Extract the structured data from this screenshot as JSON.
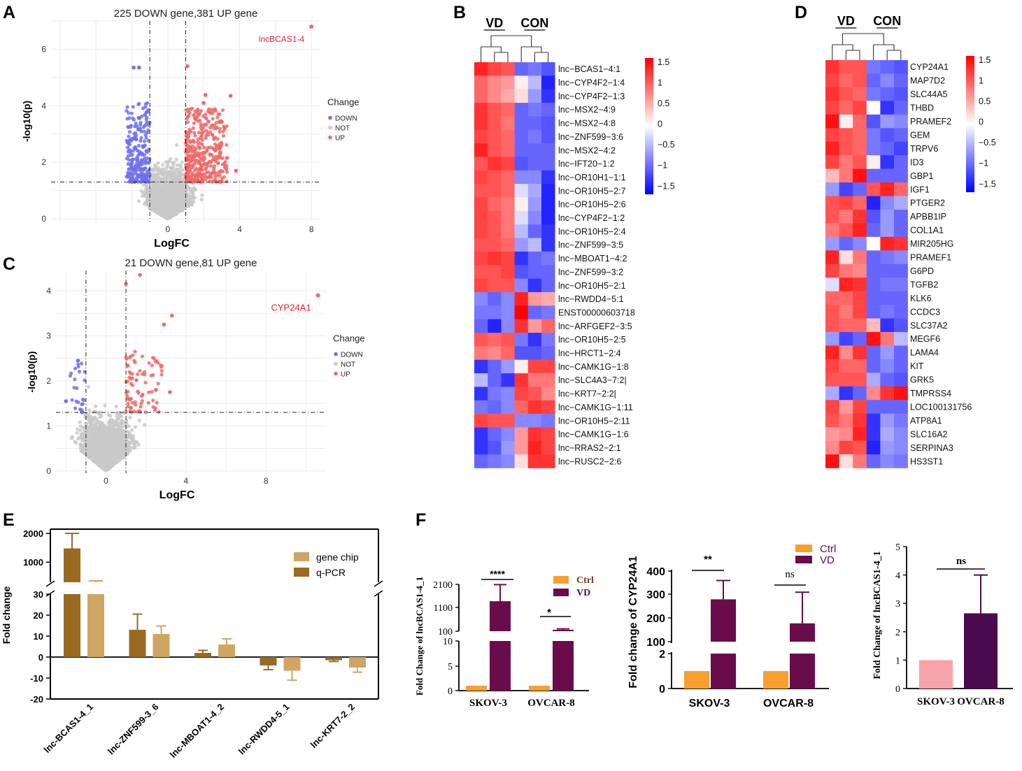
{
  "panel_labels": {
    "a": "A",
    "b": "B",
    "c": "C",
    "d": "D",
    "e": "E",
    "f": "F"
  },
  "chart_data": [
    {
      "id": "A",
      "type": "scatter",
      "title": "225 DOWN gene,381 UP gene",
      "xlabel": "LogFC",
      "ylabel": "-log10(p)",
      "xticks": [
        "0",
        "4",
        "8"
      ],
      "yticks": [
        "0",
        "2",
        "4",
        "6"
      ],
      "xlim": [
        -6.5,
        8.5
      ],
      "ylim": [
        -0.1,
        7.0
      ],
      "thresholds": {
        "logfc": [
          -1,
          1
        ],
        "p": 1.3
      },
      "annotation": {
        "label": "lncBCAS1-4",
        "x": 8.0,
        "y": 6.8
      },
      "legend_title": "Change",
      "legend": [
        "DOWN",
        "NOT",
        "UP"
      ],
      "colors": {
        "DOWN": "#7070ee",
        "NOT": "#c9c9c9",
        "UP": "#ee6a6a"
      },
      "counts": {
        "down": 225,
        "up": 381
      },
      "highlight_points": [
        {
          "x": -1.9,
          "y": 5.35,
          "c": "DOWN"
        },
        {
          "x": -1.6,
          "y": 5.35,
          "c": "DOWN"
        },
        {
          "x": 1.1,
          "y": 5.4,
          "c": "UP"
        },
        {
          "x": 3.5,
          "y": 4.35,
          "c": "UP"
        },
        {
          "x": 2.1,
          "y": 4.38,
          "c": "UP"
        },
        {
          "x": 3.3,
          "y": 2.15,
          "c": "UP"
        },
        {
          "x": 3.8,
          "y": 1.7,
          "c": "UP"
        },
        {
          "x": 2.0,
          "y": 4.1,
          "c": "UP"
        }
      ]
    },
    {
      "id": "C",
      "type": "scatter",
      "title": "21 DOWN gene,81 UP gene",
      "xlabel": "LogFC",
      "ylabel": "-log10(p)",
      "xticks": [
        "0",
        "4",
        "8"
      ],
      "yticks": [
        "0",
        "1",
        "2",
        "3",
        "4"
      ],
      "xlim": [
        -2.5,
        11.0
      ],
      "ylim": [
        -0.05,
        4.45
      ],
      "thresholds": {
        "logfc": [
          -1,
          1
        ],
        "p": 1.3
      },
      "annotation": {
        "label": "CYP24A1",
        "x": 10.6,
        "y": 3.9
      },
      "legend_title": "Change",
      "legend": [
        "DOWN",
        "NOT",
        "UP"
      ],
      "colors": {
        "DOWN": "#7070ee",
        "NOT": "#c9c9c9",
        "UP": "#ee6a6a"
      },
      "counts": {
        "down": 21,
        "up": 81
      },
      "highlight_points": [
        {
          "x": 1.7,
          "y": 4.35,
          "c": "UP"
        },
        {
          "x": 1.0,
          "y": 4.15,
          "c": "UP"
        },
        {
          "x": 3.3,
          "y": 3.45,
          "c": "UP"
        },
        {
          "x": 2.9,
          "y": 3.25,
          "c": "UP"
        },
        {
          "x": 3.2,
          "y": 1.75,
          "c": "UP"
        },
        {
          "x": 2.5,
          "y": 1.8,
          "c": "UP"
        },
        {
          "x": -2.0,
          "y": 1.55,
          "c": "DOWN"
        },
        {
          "x": -1.4,
          "y": 2.45,
          "c": "DOWN"
        }
      ]
    },
    {
      "id": "B",
      "type": "heatmap",
      "groups": [
        "VD",
        "CON"
      ],
      "scale": {
        "ticks": [
          "1.5",
          "1",
          "0.5",
          "0",
          "−0.5",
          "−1",
          "−1.5"
        ],
        "range": [
          -1.5,
          1.5
        ]
      },
      "rows": [
        "lnc−BCAS1−4:1",
        "lnc−CYP4F2−1:4",
        "lnc−CYP4F2−1:3",
        "lnc−MSX2−4:9",
        "lnc−MSX2−4:8",
        "lnc−ZNF599−3:6",
        "lnc−MSX2−4:2",
        "lnc−IFT20−1:2",
        "lnc−OR10H1−1:1",
        "lnc−OR10H5−2:7",
        "lnc−OR10H5−2:6",
        "lnc−CYP4F2−1:2",
        "lnc−OR10H5−2:4",
        "lnc−ZNF599−3:5",
        "lnc−MBOAT1−4:2",
        "lnc−ZNF599−3:2",
        "lnc−OR10H5−2:1",
        "lnc−RWDD4−5:1",
        "ENST00000603718",
        "lnc−ARFGEF2−3:5",
        "lnc−OR10H5−2:5",
        "lnc−HRCT1−2:4",
        "lnc−CAMK1G−1:8",
        "lnc−SLC4A3−7:2|",
        "lnc−KRT7−2:2|",
        "lnc−CAMK1G−1:11",
        "lnc−OR10H5−2:11",
        "lnc−CAMK1G−1:6",
        "lnc−RRAS2−2:1",
        "lnc−RUSC2−2:6"
      ],
      "values": [
        [
          1.3,
          1.1,
          1.0,
          -0.9,
          -0.8,
          -1.0
        ],
        [
          0.9,
          0.7,
          0.6,
          0.1,
          -0.4,
          -1.3
        ],
        [
          0.9,
          0.7,
          0.5,
          0.2,
          -0.6,
          -1.2
        ],
        [
          1.2,
          1.0,
          0.9,
          -0.9,
          -0.8,
          -0.9
        ],
        [
          1.2,
          1.0,
          0.8,
          -0.9,
          -0.9,
          -1.0
        ],
        [
          1.1,
          1.0,
          0.9,
          -0.9,
          -0.8,
          -1.0
        ],
        [
          1.3,
          1.0,
          0.9,
          -0.9,
          -0.9,
          -0.9
        ],
        [
          1.0,
          1.2,
          1.1,
          -1.0,
          -0.9,
          -0.9
        ],
        [
          1.1,
          1.0,
          0.9,
          -0.7,
          -0.7,
          -1.2
        ],
        [
          1.0,
          1.0,
          0.9,
          -0.2,
          -0.5,
          -1.3
        ],
        [
          1.1,
          0.9,
          0.8,
          0.1,
          -0.6,
          -1.3
        ],
        [
          1.1,
          1.0,
          0.8,
          -0.2,
          -0.7,
          -1.3
        ],
        [
          1.1,
          1.0,
          0.8,
          -0.4,
          -0.9,
          -1.2
        ],
        [
          1.0,
          1.0,
          0.9,
          -0.6,
          -0.4,
          -1.2
        ],
        [
          1.1,
          1.2,
          1.1,
          -1.2,
          -0.9,
          -0.8
        ],
        [
          1.0,
          1.0,
          1.1,
          -1.0,
          -0.9,
          -0.9
        ],
        [
          1.1,
          1.0,
          1.0,
          -0.7,
          -1.2,
          -0.9
        ],
        [
          -0.7,
          -0.9,
          -0.7,
          1.3,
          0.6,
          0.5
        ],
        [
          -0.8,
          -0.8,
          -0.7,
          1.5,
          -0.9,
          -0.8
        ],
        [
          -0.9,
          -1.3,
          -0.7,
          1.2,
          0.6,
          0.9
        ],
        [
          1.0,
          0.9,
          1.0,
          -0.8,
          -1.2,
          -0.8
        ],
        [
          0.8,
          0.7,
          0.9,
          -1.0,
          -1.0,
          -0.9
        ],
        [
          -1.2,
          -0.9,
          -0.6,
          0.1,
          1.1,
          1.1
        ],
        [
          -0.4,
          -0.9,
          -1.2,
          1.2,
          0.8,
          0.8
        ],
        [
          -1.2,
          -0.8,
          -0.7,
          1.1,
          1.0,
          0.7
        ],
        [
          -0.8,
          -0.9,
          -0.7,
          0.9,
          1.2,
          1.1
        ],
        [
          1.1,
          1.0,
          1.0,
          -0.7,
          -0.7,
          -0.8
        ],
        [
          -1.2,
          -0.9,
          -0.7,
          0.6,
          1.2,
          1.1
        ],
        [
          -1.2,
          -1.0,
          -0.6,
          0.6,
          1.3,
          1.1
        ],
        [
          -0.9,
          -0.8,
          -0.7,
          0.2,
          1.2,
          1.2
        ]
      ]
    },
    {
      "id": "D",
      "type": "heatmap",
      "groups": [
        "VD",
        "CON"
      ],
      "scale": {
        "ticks": [
          "1.5",
          "1",
          "0.5",
          "0",
          "−0.5",
          "−1",
          "−1.5"
        ],
        "range": [
          -1.5,
          1.5
        ]
      },
      "rows": [
        "CYP24A1",
        "MAP7D2",
        "SLC44A5",
        "THBD",
        "PRAMEF2",
        "GEM",
        "TRPV6",
        "ID3",
        "GBP1",
        "IGF1",
        "PTGER2",
        "APBB1IP",
        "COL1A1",
        "MIR205HG",
        "PRAMEF1",
        "G6PD",
        "TGFB2",
        "KLK6",
        "CCDC3",
        "SLC37A2",
        "MEGF6",
        "LAMA4",
        "KIT",
        "GRK5",
        "TMPRSS4",
        "LOC100131756",
        "ATP8A1",
        "SLC16A2",
        "SERPINA3",
        "HS3ST1"
      ],
      "values": [
        [
          1.2,
          1.0,
          1.0,
          -0.8,
          -0.9,
          -1.0
        ],
        [
          1.1,
          0.9,
          1.0,
          -0.9,
          -0.7,
          -0.9
        ],
        [
          1.2,
          1.0,
          0.9,
          -0.8,
          -0.9,
          -1.0
        ],
        [
          1.1,
          0.9,
          1.1,
          0.0,
          -1.2,
          -0.9
        ],
        [
          1.4,
          0.1,
          0.9,
          -1.0,
          -0.6,
          -0.7
        ],
        [
          1.1,
          1.0,
          0.9,
          -0.8,
          -1.0,
          -0.9
        ],
        [
          1.3,
          1.0,
          0.9,
          -0.8,
          -0.9,
          -1.1
        ],
        [
          1.1,
          0.8,
          1.0,
          0.1,
          -1.2,
          -0.9
        ],
        [
          0.4,
          0.8,
          1.4,
          -0.9,
          -0.9,
          -0.9
        ],
        [
          -0.6,
          -1.1,
          -0.9,
          1.0,
          1.3,
          0.9
        ],
        [
          1.0,
          1.1,
          0.9,
          -1.3,
          -0.7,
          -0.5
        ],
        [
          1.0,
          0.8,
          1.2,
          -1.0,
          -0.6,
          -0.9
        ],
        [
          0.8,
          1.0,
          1.3,
          -0.9,
          -0.6,
          -0.9
        ],
        [
          -0.6,
          -0.9,
          -0.7,
          0.0,
          1.3,
          1.2
        ],
        [
          1.3,
          0.2,
          0.8,
          -0.9,
          -0.8,
          -0.7
        ],
        [
          1.1,
          0.8,
          0.7,
          -0.9,
          -0.9,
          -0.9
        ],
        [
          -0.2,
          1.3,
          1.2,
          -0.9,
          -0.8,
          -0.8
        ],
        [
          0.9,
          0.9,
          1.1,
          -0.9,
          -0.9,
          -0.9
        ],
        [
          1.0,
          0.8,
          1.1,
          -0.9,
          -0.8,
          -0.9
        ],
        [
          1.0,
          0.9,
          0.9,
          0.4,
          -1.2,
          -1.0
        ],
        [
          -0.6,
          -1.1,
          -0.9,
          1.4,
          0.8,
          -0.4
        ],
        [
          1.3,
          0.7,
          1.2,
          -0.9,
          -0.6,
          -0.9
        ],
        [
          1.1,
          0.9,
          0.9,
          -0.9,
          -0.7,
          -0.9
        ],
        [
          1.0,
          1.0,
          1.0,
          -0.5,
          -0.9,
          -1.0
        ],
        [
          -0.5,
          -1.2,
          -0.9,
          0.7,
          1.2,
          1.4
        ],
        [
          1.1,
          0.6,
          1.1,
          -0.9,
          -0.9,
          -0.9
        ],
        [
          1.0,
          0.8,
          1.2,
          -1.2,
          -0.6,
          -0.8
        ],
        [
          0.6,
          0.7,
          1.3,
          -1.2,
          -0.5,
          -0.7
        ],
        [
          0.7,
          1.1,
          1.0,
          -1.3,
          -0.6,
          -0.7
        ],
        [
          1.4,
          0.2,
          0.8,
          -0.9,
          -0.7,
          -0.8
        ]
      ]
    },
    {
      "id": "E",
      "type": "bar",
      "ylabel": "Fold change",
      "categories": [
        "lnc-BCAS1-4_1",
        "lnc-ZNF599-3_6",
        "lnc-MBOAT1-4_2",
        "lnc-RWDD4-5_1",
        "lnc-KRT7-2_2"
      ],
      "series": [
        {
          "name": "q-PCR",
          "values": [
            1480,
            13,
            2,
            -4,
            -1.5
          ],
          "errors": [
            520,
            7.5,
            1.2,
            2.0,
            0.6
          ],
          "color": "#9b6a22"
        },
        {
          "name": "gene chip",
          "values": [
            310,
            11,
            6,
            -6.5,
            -5
          ],
          "errors": [
            45,
            3.8,
            2.7,
            4.5,
            2.2
          ],
          "color": "#d0a564"
        }
      ],
      "legend": [
        "gene chip",
        "q-PCR"
      ],
      "yticks_low": [
        "-20",
        "-10",
        "0",
        "10",
        "20",
        "30"
      ],
      "yticks_high": [
        "1000",
        "2000"
      ],
      "ybreak": [
        30,
        2150
      ]
    },
    {
      "id": "F1",
      "type": "bar",
      "ylabel": "Fold Change of lncBCAS1-4_1",
      "categories": [
        "SKOV-3",
        "OVCAR-8"
      ],
      "series": [
        {
          "name": "Ctrl",
          "values": [
            1,
            1
          ],
          "color": "#f5a02f"
        },
        {
          "name": "VD",
          "values": [
            1370,
            160
          ],
          "errors": [
            720,
            40
          ],
          "color": "#6a0c4b"
        }
      ],
      "legend": [
        "Ctrl",
        "VD"
      ],
      "yticks": [
        "0",
        "5",
        "10",
        "100",
        "1100",
        "2100"
      ],
      "significance": [
        "****",
        "*"
      ]
    },
    {
      "id": "F2",
      "type": "bar",
      "ylabel": "Fold change of CYP24A1",
      "categories": [
        "SKOV-3",
        "OVCAR-8"
      ],
      "series": [
        {
          "name": "Ctrl",
          "values": [
            1,
            1
          ],
          "color": "#f5a02f"
        },
        {
          "name": "VD",
          "values": [
            280,
            178
          ],
          "errors": [
            80,
            132
          ],
          "color": "#6a0c4b"
        }
      ],
      "legend": [
        "Ctrl",
        "VD"
      ],
      "yticks": [
        "0",
        "2",
        "100",
        "200",
        "300",
        "400"
      ],
      "significance": [
        "**",
        "ns"
      ]
    },
    {
      "id": "F3",
      "type": "bar",
      "ylabel": "Fold Change of lncBCAS1-4_1",
      "categories": [
        "SKOV-3",
        "OVCAR-8"
      ],
      "values": [
        1.0,
        2.65
      ],
      "errors": [
        0,
        1.35
      ],
      "colors": [
        "#f7a3ab",
        "#4a0a4e"
      ],
      "yticks": [
        "0",
        "1",
        "2",
        "3",
        "4",
        "5"
      ],
      "ylim": [
        0,
        5
      ],
      "significance": [
        "ns"
      ]
    }
  ]
}
